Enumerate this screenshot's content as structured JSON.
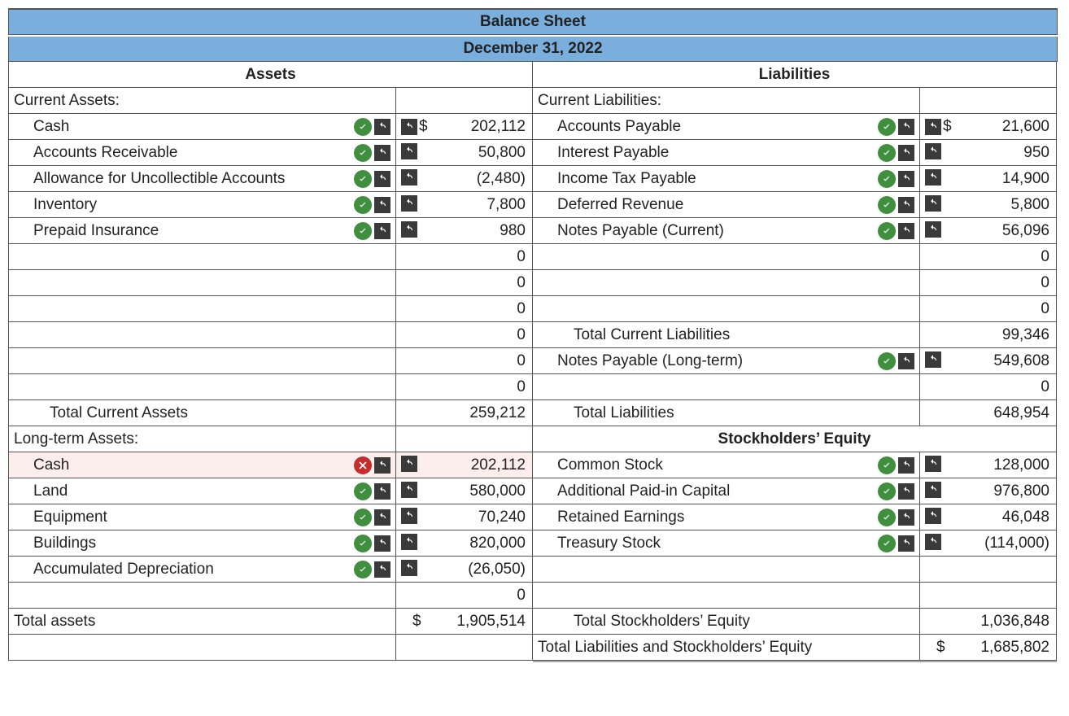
{
  "colors": {
    "header_bg": "#7aaedc",
    "border": "#555555",
    "check_bg": "#3f8f3f",
    "cross_bg": "#c72c2c",
    "undo_bg": "#3a3a3a",
    "error_row_bg": "#fdeeee"
  },
  "title": "Balance Sheet",
  "date": "December 31, 2022",
  "headers": {
    "assets": "Assets",
    "liabilities": "Liabilities",
    "stockholders_equity": "Stockholders’ Equity"
  },
  "assets": {
    "current_header": "Current Assets:",
    "items": [
      {
        "label": "Cash",
        "status": "ok",
        "value": "202,112",
        "prefix": "$"
      },
      {
        "label": "Accounts Receivable",
        "status": "ok",
        "value": "50,800"
      },
      {
        "label": "Allowance for Uncollectible Accounts",
        "status": "ok",
        "value": "(2,480)"
      },
      {
        "label": "Inventory",
        "status": "ok",
        "value": "7,800"
      },
      {
        "label": "Prepaid Insurance",
        "status": "ok",
        "value": "980"
      },
      {
        "label": "",
        "status": "",
        "value": "0"
      },
      {
        "label": "",
        "status": "",
        "value": "0"
      },
      {
        "label": "",
        "status": "",
        "value": "0"
      },
      {
        "label": "",
        "status": "",
        "value": "0"
      },
      {
        "label": "",
        "status": "",
        "value": "0"
      },
      {
        "label": "",
        "status": "",
        "value": "0"
      }
    ],
    "total_current": {
      "label": "Total Current Assets",
      "value": "259,212"
    },
    "longterm_header": "Long-term Assets:",
    "longterm_items": [
      {
        "label": "Cash",
        "status": "err",
        "value": "202,112"
      },
      {
        "label": "Land",
        "status": "ok",
        "value": "580,000"
      },
      {
        "label": "Equipment",
        "status": "ok",
        "value": "70,240"
      },
      {
        "label": "Buildings",
        "status": "ok",
        "value": "820,000"
      },
      {
        "label": "Accumulated Depreciation",
        "status": "ok",
        "value": "(26,050)"
      },
      {
        "label": "",
        "status": "",
        "value": "0"
      }
    ],
    "total": {
      "label": "Total assets",
      "value": "1,905,514",
      "prefix": "$"
    }
  },
  "liabilities": {
    "current_header": "Current Liabilities:",
    "items": [
      {
        "label": "Accounts Payable",
        "status": "ok",
        "value": "21,600",
        "prefix": "$"
      },
      {
        "label": "Interest Payable",
        "status": "ok",
        "value": "950"
      },
      {
        "label": "Income Tax Payable",
        "status": "ok",
        "value": "14,900"
      },
      {
        "label": "Deferred Revenue",
        "status": "ok",
        "value": "5,800"
      },
      {
        "label": "Notes Payable (Current)",
        "status": "ok",
        "value": "56,096"
      },
      {
        "label": "",
        "status": "",
        "value": "0"
      },
      {
        "label": "",
        "status": "",
        "value": "0"
      },
      {
        "label": "",
        "status": "",
        "value": "0"
      }
    ],
    "total_current": {
      "label": "Total Current Liabilities",
      "value": "99,346"
    },
    "longterm_items": [
      {
        "label": "Notes Payable (Long-term)",
        "status": "ok",
        "value": "549,608"
      },
      {
        "label": "",
        "status": "",
        "value": "0"
      }
    ],
    "total": {
      "label": "Total Liabilities",
      "value": "648,954"
    }
  },
  "equity": {
    "items": [
      {
        "label": "Common Stock",
        "status": "ok",
        "value": "128,000"
      },
      {
        "label": "Additional Paid-in Capital",
        "status": "ok",
        "value": "976,800"
      },
      {
        "label": "Retained Earnings",
        "status": "ok",
        "value": "46,048"
      },
      {
        "label": "Treasury Stock",
        "status": "ok",
        "value": "(114,000)"
      },
      {
        "label": "",
        "status": "",
        "value": ""
      },
      {
        "label": "",
        "status": "",
        "value": ""
      }
    ],
    "total": {
      "label": "Total Stockholders’ Equity",
      "value": "1,036,848"
    },
    "grand_total": {
      "label": "Total Liabilities and Stockholders’ Equity",
      "value": "1,685,802",
      "prefix": "$"
    }
  }
}
